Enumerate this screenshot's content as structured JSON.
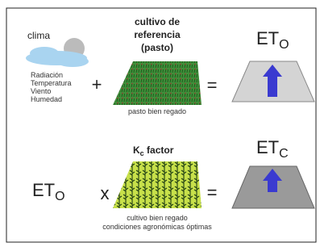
{
  "row1": {
    "source": {
      "label": "clima",
      "factors": [
        "Radiación",
        "Temperatura",
        "Viento",
        "Humedad"
      ]
    },
    "operator": "+",
    "crop": {
      "title": [
        "cultivo de",
        "referencia",
        "(pasto)"
      ],
      "caption": "pasto bien regado"
    },
    "equals": "=",
    "result": {
      "base": "ET",
      "sub": "O"
    }
  },
  "row2": {
    "input": {
      "base": "ET",
      "sub": "O"
    },
    "operator": "x",
    "factor": {
      "base": "K",
      "sub": "c",
      "rest": " factor"
    },
    "crop": {
      "caption": [
        "cultivo bien regado",
        "condiciones agronómicas óptimas"
      ]
    },
    "equals": "=",
    "result": {
      "base": "ET",
      "sub": "C"
    }
  }
}
